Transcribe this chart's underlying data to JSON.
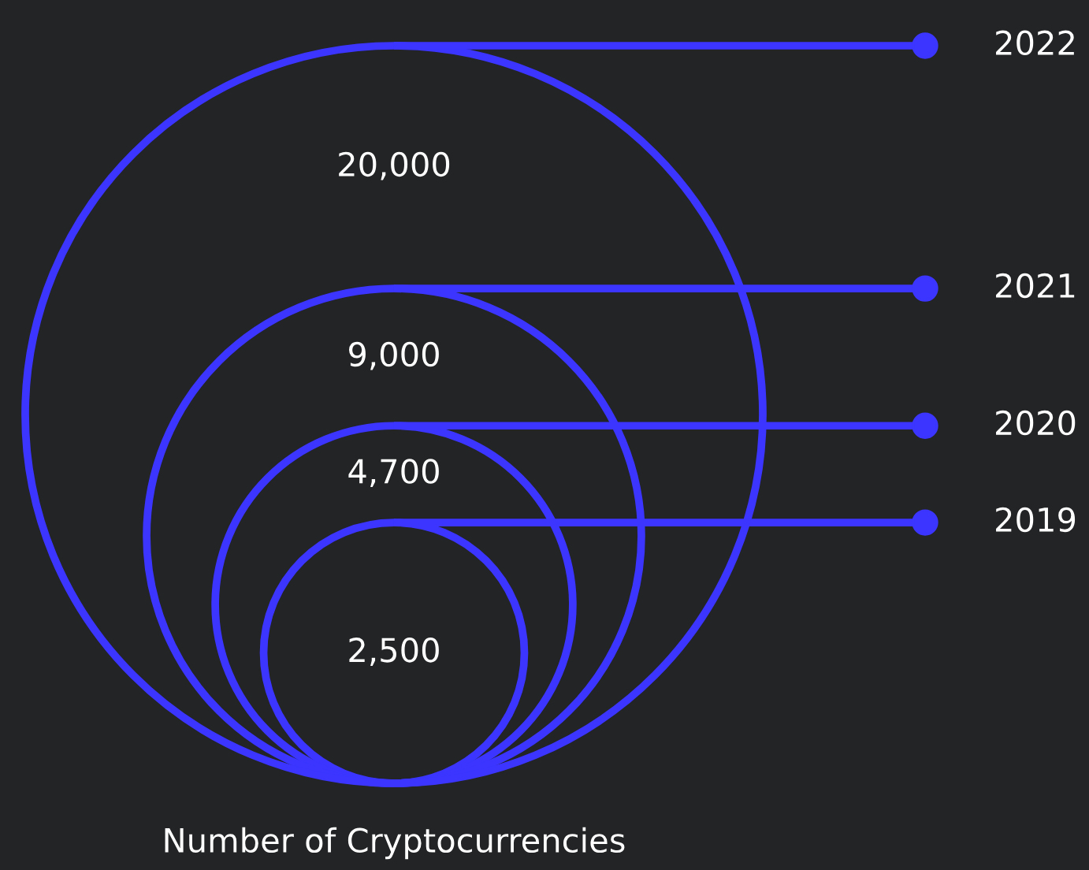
{
  "chart_data": {
    "type": "other",
    "xlabel": "Number of Cryptocurrencies",
    "categories": [
      "2019",
      "2020",
      "2021",
      "2022"
    ],
    "values": [
      2500,
      4700,
      9000,
      20000
    ],
    "value_labels": [
      "2,500",
      "4,700",
      "9,000",
      "20,000"
    ],
    "color": "#3b35ff"
  }
}
